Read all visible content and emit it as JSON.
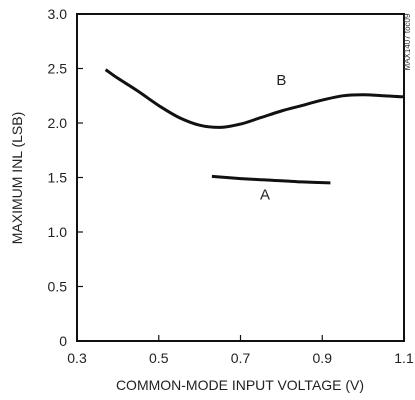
{
  "chart_data": {
    "type": "line",
    "title": "",
    "xlabel": "COMMON-MODE INPUT VOLTAGE (V)",
    "ylabel": "MAXIMUM INL (LSB)",
    "xlim": [
      0.3,
      1.1
    ],
    "ylim": [
      0,
      3.0
    ],
    "x_ticks": [
      "0.3",
      "0.5",
      "0.7",
      "0.9",
      "1.1"
    ],
    "y_ticks": [
      "0",
      "0.5",
      "1.0",
      "1.5",
      "2.0",
      "2.5",
      "3.0"
    ],
    "grid": false,
    "legend": "none",
    "series": [
      {
        "name": "B",
        "x": [
          0.37,
          0.4,
          0.45,
          0.5,
          0.55,
          0.6,
          0.65,
          0.7,
          0.75,
          0.8,
          0.85,
          0.9,
          0.95,
          1.0,
          1.05,
          1.1
        ],
        "y": [
          2.49,
          2.41,
          2.29,
          2.16,
          2.05,
          1.98,
          1.96,
          1.99,
          2.05,
          2.11,
          2.16,
          2.21,
          2.25,
          2.26,
          2.25,
          2.24
        ]
      },
      {
        "name": "A",
        "x": [
          0.63,
          0.7,
          0.75,
          0.8,
          0.85,
          0.92
        ],
        "y": [
          1.51,
          1.49,
          1.48,
          1.47,
          1.46,
          1.45
        ]
      }
    ],
    "annotations": [
      {
        "text": "B",
        "x": 0.8,
        "y": 2.35
      },
      {
        "text": "A",
        "x": 0.76,
        "y": 1.3
      }
    ],
    "figure_id": "MAX1407 toc09",
    "line_color": "#111111"
  }
}
